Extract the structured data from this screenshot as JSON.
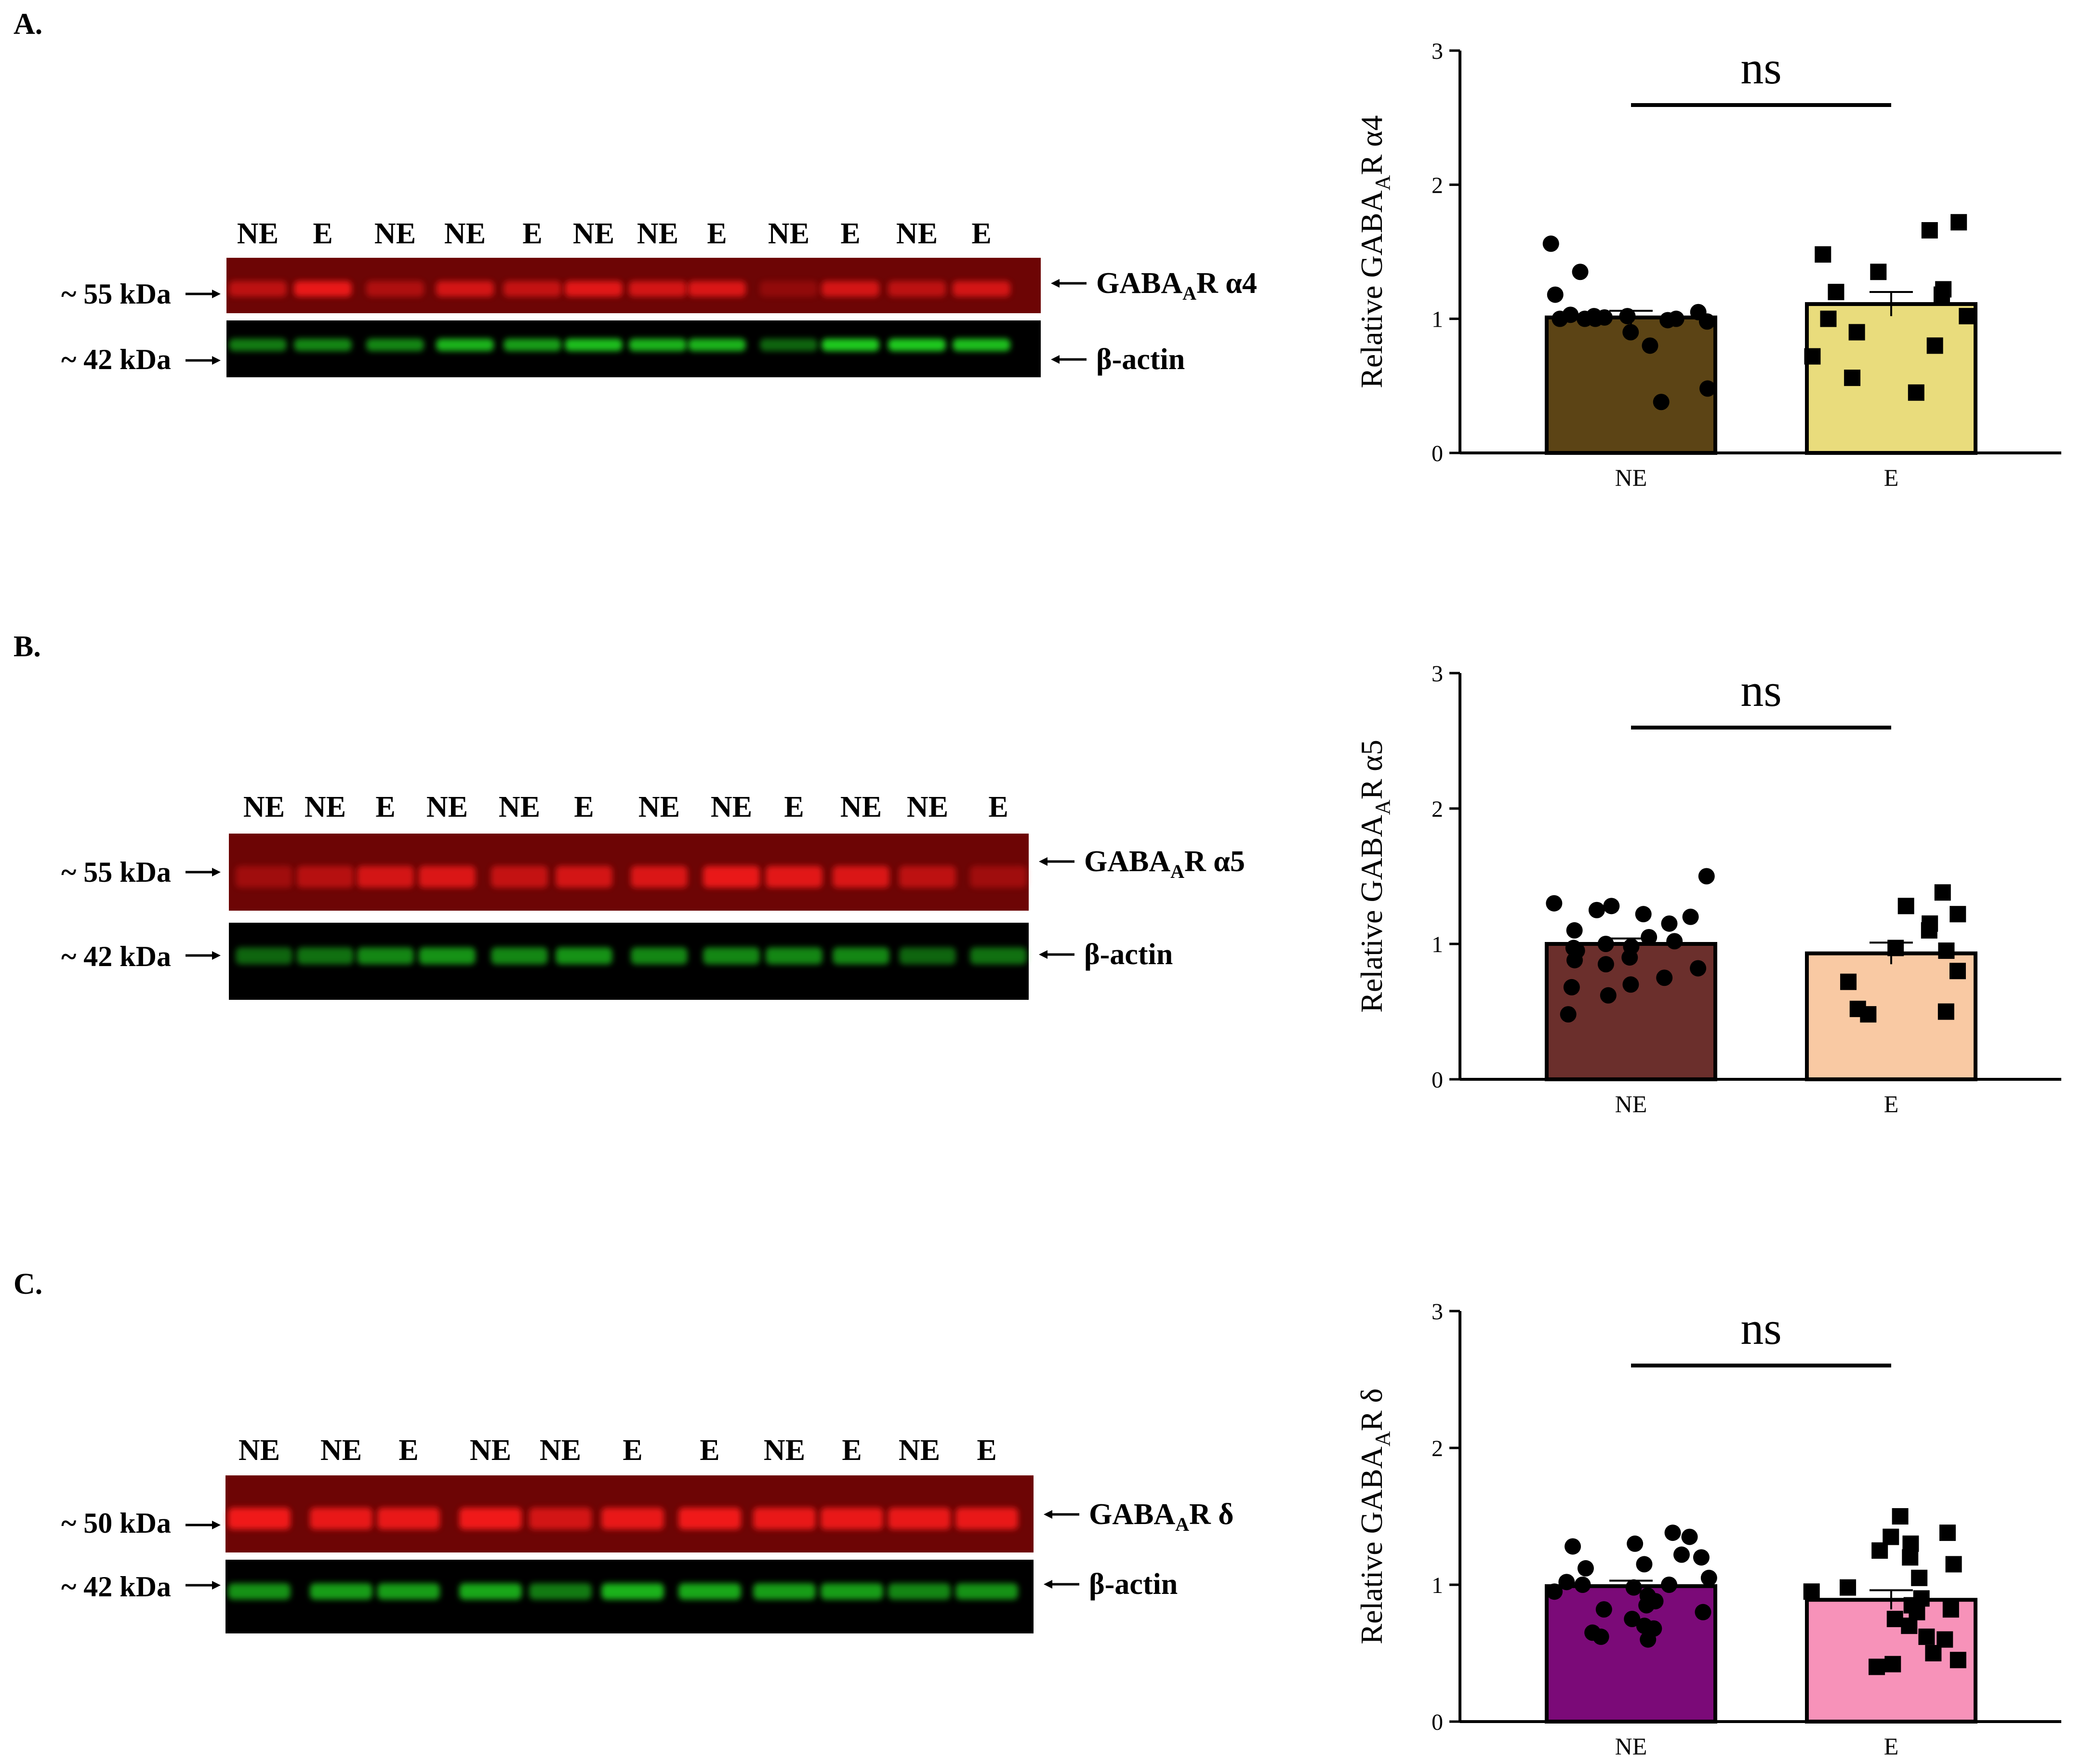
{
  "figure": {
    "panels": [
      {
        "id": "A",
        "letter": "A.",
        "blot": {
          "lanes": [
            "NE",
            "E",
            "NE",
            "NE",
            "E",
            "NE",
            "NE",
            "E",
            "NE",
            "E",
            "NE",
            "E"
          ],
          "red_marker": "~ 55 kDa",
          "green_marker": "~ 42 kDa",
          "red_target": "GABA",
          "red_target_sub": "A",
          "red_target_suffix": "R α4",
          "green_target": "β-actin",
          "red_intensity": [
            0.55,
            0.85,
            0.45,
            0.7,
            0.6,
            0.8,
            0.7,
            0.75,
            0.25,
            0.7,
            0.55,
            0.7
          ],
          "green_intensity": [
            0.55,
            0.6,
            0.6,
            0.8,
            0.7,
            0.85,
            0.8,
            0.8,
            0.45,
            0.9,
            0.9,
            0.85
          ]
        },
        "chart_data": {
          "type": "bar",
          "categories": [
            "NE",
            "E"
          ],
          "values": [
            1.01,
            1.11
          ],
          "sem": [
            0.05,
            0.09
          ],
          "colors": [
            "#5c4415",
            "#e9dc7c"
          ],
          "markers": [
            "circle",
            "square"
          ],
          "points": [
            [
              1.56,
              1.35,
              1.18,
              1.02,
              1.0,
              1.0,
              0.98,
              1.03,
              1.01,
              1.05,
              0.99,
              1.0,
              1.02,
              1.0,
              0.9,
              0.8,
              0.48,
              0.38
            ],
            [
              1.72,
              1.66,
              1.48,
              1.35,
              1.22,
              1.2,
              1.18,
              1.0,
              1.02,
              0.9,
              0.8,
              0.72,
              0.56,
              0.45
            ]
          ],
          "ylabel": "Relative GABA",
          "ylabel_sub": "A",
          "ylabel_suffix": "R α4",
          "ylim": [
            0,
            3
          ],
          "yticks": [
            "0",
            "1",
            "2",
            "3"
          ],
          "significance": "ns"
        }
      },
      {
        "id": "B",
        "letter": "B.",
        "blot": {
          "lanes": [
            "NE",
            "NE",
            "E",
            "NE",
            "NE",
            "E",
            "NE",
            "NE",
            "E",
            "NE",
            "NE",
            "E"
          ],
          "red_marker": "~ 55 kDa",
          "green_marker": "~ 42 kDa",
          "red_target": "GABA",
          "red_target_sub": "A",
          "red_target_suffix": "R α5",
          "green_target": "β-actin",
          "red_intensity": [
            0.35,
            0.5,
            0.7,
            0.75,
            0.6,
            0.7,
            0.75,
            0.85,
            0.8,
            0.75,
            0.55,
            0.35
          ],
          "green_intensity": [
            0.45,
            0.5,
            0.6,
            0.65,
            0.6,
            0.65,
            0.6,
            0.6,
            0.6,
            0.6,
            0.45,
            0.5
          ]
        },
        "chart_data": {
          "type": "bar",
          "categories": [
            "NE",
            "E"
          ],
          "values": [
            1.0,
            0.93
          ],
          "sem": [
            0.04,
            0.08
          ],
          "colors": [
            "#6b2f2c",
            "#f9c9a3"
          ],
          "markers": [
            "circle",
            "square"
          ],
          "points": [
            [
              1.5,
              1.3,
              1.28,
              1.25,
              1.22,
              1.2,
              1.15,
              1.1,
              1.05,
              1.02,
              1.0,
              0.98,
              0.97,
              0.95,
              0.9,
              0.88,
              0.85,
              0.82,
              0.75,
              0.7,
              0.68,
              0.62,
              0.48
            ],
            [
              1.38,
              1.28,
              1.22,
              1.15,
              1.1,
              0.97,
              0.95,
              0.8,
              0.72,
              0.52,
              0.5,
              0.48
            ]
          ],
          "ylabel": "Relative GABA",
          "ylabel_sub": "A",
          "ylabel_suffix": "R α5",
          "ylim": [
            0,
            3
          ],
          "yticks": [
            "0",
            "1",
            "2",
            "3"
          ],
          "significance": "ns"
        }
      },
      {
        "id": "C",
        "letter": "C.",
        "blot": {
          "lanes": [
            "NE",
            "NE",
            "E",
            "NE",
            "NE",
            "E",
            "E",
            "NE",
            "E",
            "NE",
            "E"
          ],
          "red_marker": "~ 50 kDa",
          "green_marker": "~ 42 kDa",
          "red_target": "GABA",
          "red_target_sub": "A",
          "red_target_suffix": "R δ",
          "green_target": "β-actin",
          "red_intensity": [
            0.9,
            0.85,
            0.85,
            0.9,
            0.7,
            0.85,
            0.9,
            0.85,
            0.85,
            0.85,
            0.85
          ],
          "green_intensity": [
            0.65,
            0.7,
            0.7,
            0.75,
            0.55,
            0.8,
            0.75,
            0.7,
            0.7,
            0.6,
            0.65
          ]
        },
        "chart_data": {
          "type": "bar",
          "categories": [
            "NE",
            "E"
          ],
          "values": [
            0.99,
            0.89
          ],
          "sem": [
            0.04,
            0.07
          ],
          "colors": [
            "#7b0a78",
            "#f792b9"
          ],
          "markers": [
            "circle",
            "square"
          ],
          "points": [
            [
              1.38,
              1.35,
              1.3,
              1.28,
              1.22,
              1.2,
              1.15,
              1.12,
              1.05,
              1.02,
              1.0,
              1.0,
              0.98,
              0.95,
              0.92,
              0.88,
              0.85,
              0.82,
              0.8,
              0.75,
              0.7,
              0.68,
              0.65,
              0.62,
              0.6
            ],
            [
              1.5,
              1.38,
              1.35,
              1.3,
              1.25,
              1.2,
              1.15,
              1.05,
              0.98,
              0.95,
              0.9,
              0.85,
              0.82,
              0.8,
              0.75,
              0.7,
              0.62,
              0.6,
              0.5,
              0.45,
              0.42,
              0.4
            ]
          ],
          "ylabel": "Relative GABA",
          "ylabel_sub": "A",
          "ylabel_suffix": "R δ",
          "ylim": [
            0,
            3
          ],
          "yticks": [
            "0",
            "1",
            "2",
            "3"
          ],
          "significance": "ns"
        }
      }
    ]
  }
}
